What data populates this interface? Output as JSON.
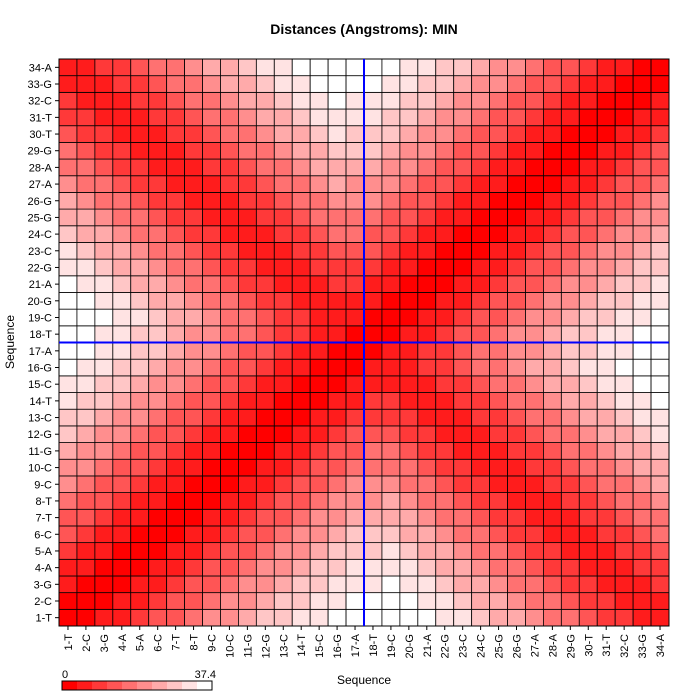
{
  "chart_data": {
    "type": "heatmap",
    "title": "Distances (Angstroms):  MIN",
    "xlabel": "Sequence",
    "ylabel": "Sequence",
    "labels": [
      "1-T",
      "2-C",
      "3-G",
      "4-A",
      "5-A",
      "6-C",
      "7-T",
      "8-T",
      "9-C",
      "10-C",
      "11-G",
      "12-G",
      "13-C",
      "14-T",
      "15-C",
      "16-G",
      "17-A",
      "18-T",
      "19-C",
      "20-G",
      "21-A",
      "22-G",
      "23-C",
      "24-C",
      "25-G",
      "26-G",
      "27-A",
      "28-A",
      "29-G",
      "30-T",
      "31-T",
      "32-C",
      "33-G",
      "34-A"
    ],
    "scale": {
      "min": 0,
      "max": 37.4,
      "min_label": "0",
      "max_label": "37.4",
      "low_color": "#ff0000",
      "high_color": "#ffffff",
      "steps": 10
    },
    "highlight": {
      "row": "17-A",
      "col": "17-A",
      "color": "#0000ff"
    },
    "notes": "Symmetric matrix; value at (i,j) estimated as minimum inter-residue distance in Angstroms, read from cell color intensity."
  }
}
